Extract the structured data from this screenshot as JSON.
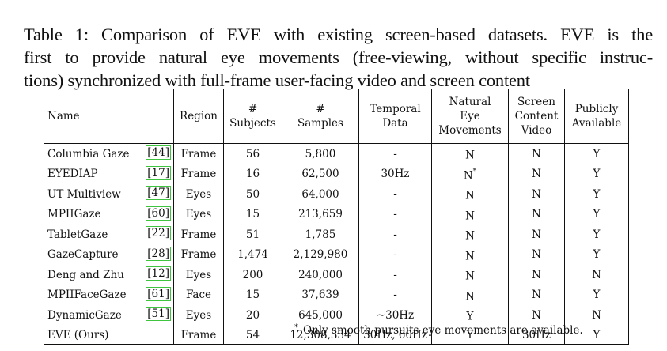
{
  "caption": {
    "lines": [
      "Table 1: Comparison of EVE with existing screen-based datasets. EVE is the",
      "first to provide natural eye movements (free-viewing, without specific instruc-",
      "tions) synchronized with full-frame user-facing video and screen content"
    ]
  },
  "table": {
    "headers": {
      "name": "Name",
      "region": "Region",
      "subjects": [
        "#",
        "Subjects"
      ],
      "samples": [
        "#",
        "Samples"
      ],
      "temporal": [
        "Temporal",
        "Data"
      ],
      "natural": [
        "Natural",
        "Eye",
        "Movements"
      ],
      "screen": [
        "Screen",
        "Content",
        "Video"
      ],
      "public": [
        "Publicly",
        "Available"
      ]
    },
    "rows": [
      {
        "name": "Columbia Gaze",
        "ref": "44",
        "region": "Frame",
        "subjects": "56",
        "samples": "5,800",
        "temporal": "-",
        "natural": "N",
        "natural_mark": "",
        "screen": "N",
        "public": "Y"
      },
      {
        "name": "EYEDIAP",
        "ref": "17",
        "region": "Frame",
        "subjects": "16",
        "samples": "62,500",
        "temporal": "30Hz",
        "natural": "N",
        "natural_mark": "*",
        "screen": "N",
        "public": "Y"
      },
      {
        "name": "UT Multiview",
        "ref": "47",
        "region": "Eyes",
        "subjects": "50",
        "samples": "64,000",
        "temporal": "-",
        "natural": "N",
        "natural_mark": "",
        "screen": "N",
        "public": "Y"
      },
      {
        "name": "MPIIGaze",
        "ref": "60",
        "region": "Eyes",
        "subjects": "15",
        "samples": "213,659",
        "temporal": "-",
        "natural": "N",
        "natural_mark": "",
        "screen": "N",
        "public": "Y"
      },
      {
        "name": "TabletGaze",
        "ref": "22",
        "region": "Frame",
        "subjects": "51",
        "samples": "1,785",
        "temporal": "-",
        "natural": "N",
        "natural_mark": "",
        "screen": "N",
        "public": "Y"
      },
      {
        "name": "GazeCapture",
        "ref": "28",
        "region": "Frame",
        "subjects": "1,474",
        "samples": "2,129,980",
        "temporal": "-",
        "natural": "N",
        "natural_mark": "",
        "screen": "N",
        "public": "Y"
      },
      {
        "name": "Deng and Zhu",
        "ref": "12",
        "region": "Eyes",
        "subjects": "200",
        "samples": "240,000",
        "temporal": "-",
        "natural": "N",
        "natural_mark": "",
        "screen": "N",
        "public": "N"
      },
      {
        "name": "MPIIFaceGaze",
        "ref": "61",
        "region": "Face",
        "subjects": "15",
        "samples": "37,639",
        "temporal": "-",
        "natural": "N",
        "natural_mark": "",
        "screen": "N",
        "public": "Y"
      },
      {
        "name": "DynamicGaze",
        "ref": "51",
        "region": "Eyes",
        "subjects": "20",
        "samples": "645,000",
        "temporal": "~30Hz",
        "natural": "Y",
        "natural_mark": "",
        "screen": "N",
        "public": "N"
      }
    ],
    "ours": {
      "name": "EVE (Ours)",
      "region": "Frame",
      "subjects": "54",
      "samples": "12,308,334",
      "temporal": "30Hz, 60Hz",
      "natural": "Y",
      "screen": "30Hz",
      "public": "Y"
    }
  },
  "footnote": {
    "mark": "*",
    "text": "Only smooth pursuits eye movements are available."
  },
  "colors": {
    "text": "#111111",
    "citation_box": "#3ec43e"
  }
}
